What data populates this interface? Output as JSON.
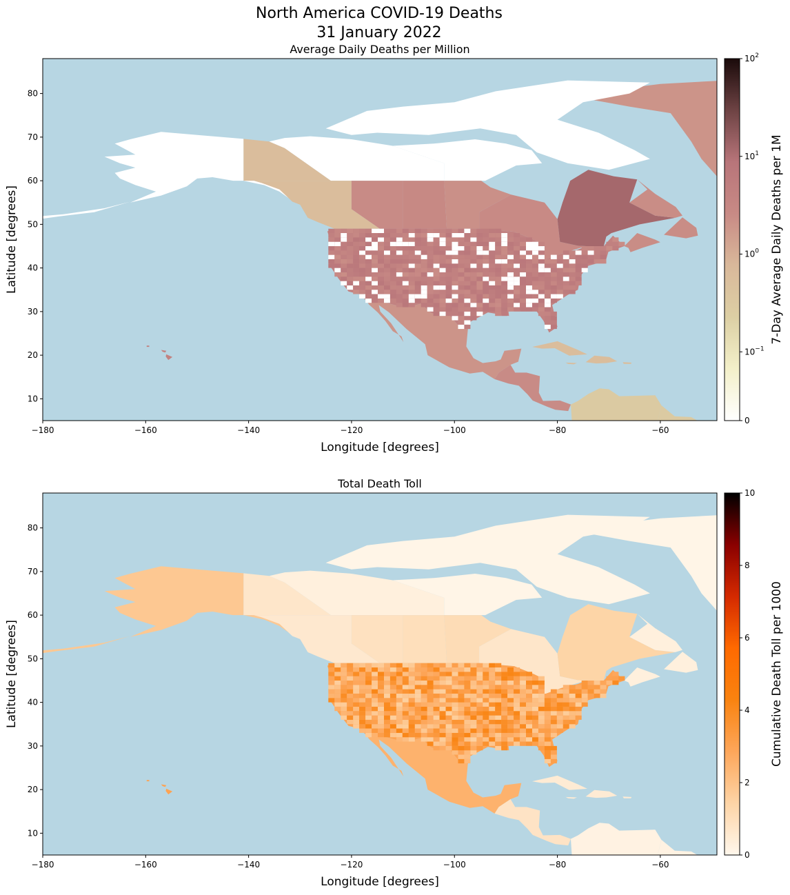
{
  "figure": {
    "title_line1": "North America COVID-19 Deaths",
    "title_line2": "31 January 2022"
  },
  "colors": {
    "ocean": "#b7d6e3",
    "land_no_data": "#ffffff",
    "daily_cmap": [
      "#ffffff",
      "#f3f0c9",
      "#dccfa4",
      "#d9b89a",
      "#c88a85",
      "#b8757a",
      "#6e4344",
      "#1a0a0a"
    ],
    "total_cmap": [
      "#fff7ec",
      "#fdd4a6",
      "#fda65a",
      "#f98310",
      "#ff6a00",
      "#d42a00",
      "#8a0000",
      "#000000"
    ]
  },
  "panels": [
    {
      "id": "daily",
      "title": "Average Daily Deaths per Million",
      "xlabel": "Longitude [degrees]",
      "ylabel": "Latitude [degrees]",
      "xlim": [
        -180,
        -49
      ],
      "ylim": [
        5,
        88
      ],
      "xticks": [
        -180,
        -160,
        -140,
        -120,
        -100,
        -80,
        -60
      ],
      "xticklabels": [
        "−180",
        "−160",
        "−140",
        "−120",
        "−100",
        "−80",
        "−60"
      ],
      "yticks": [
        10,
        20,
        30,
        40,
        50,
        60,
        70,
        80
      ],
      "yticklabels": [
        "10",
        "20",
        "30",
        "40",
        "50",
        "60",
        "70",
        "80"
      ],
      "colorbar": {
        "label": "7-Day Average Daily Deaths per 1M",
        "scale": "symlog",
        "tick_base": "10",
        "tick_exponents": [
          "2",
          "1",
          "0",
          "−1"
        ],
        "zero_label": "0"
      },
      "regions": [
        {
          "name": "Greenland",
          "value": 2.0
        },
        {
          "name": "Yukon",
          "value": 0.6
        },
        {
          "name": "Northwest Territories",
          "value": 0.0
        },
        {
          "name": "Nunavut",
          "value": 0.0
        },
        {
          "name": "British Columbia",
          "value": 0.6
        },
        {
          "name": "Alberta",
          "value": 2.5
        },
        {
          "name": "Saskatchewan",
          "value": 2.8
        },
        {
          "name": "Manitoba",
          "value": 2.2
        },
        {
          "name": "Ontario",
          "value": 2.6
        },
        {
          "name": "Quebec",
          "value": 12.0
        },
        {
          "name": "Atlantic Canada",
          "value": 2.4
        },
        {
          "name": "Alaska",
          "value": 0.0
        },
        {
          "name": "United States (counties)",
          "value": 4.0
        },
        {
          "name": "Mexico",
          "value": 2.0
        },
        {
          "name": "Central America",
          "value": 2.5
        },
        {
          "name": "Caribbean",
          "value": 0.6
        },
        {
          "name": "Venezuela",
          "value": 0.3
        }
      ]
    },
    {
      "id": "total",
      "title": "Total Death Toll",
      "xlabel": "Longitude [degrees]",
      "ylabel": "Latitude [degrees]",
      "xlim": [
        -180,
        -49
      ],
      "ylim": [
        5,
        88
      ],
      "xticks": [
        -180,
        -160,
        -140,
        -120,
        -100,
        -80,
        -60
      ],
      "xticklabels": [
        "−180",
        "−160",
        "−140",
        "−120",
        "−100",
        "−80",
        "−60"
      ],
      "yticks": [
        10,
        20,
        30,
        40,
        50,
        60,
        70,
        80
      ],
      "yticklabels": [
        "10",
        "20",
        "30",
        "40",
        "50",
        "60",
        "70",
        "80"
      ],
      "colorbar": {
        "label": "Cumulative Death Toll per 1000",
        "scale": "linear",
        "range": [
          0,
          10
        ],
        "ticks": [
          0,
          2,
          4,
          6,
          8,
          10
        ],
        "ticklabels": [
          "0",
          "2",
          "4",
          "6",
          "8",
          "10"
        ]
      },
      "regions": [
        {
          "name": "Greenland",
          "value": 0.1
        },
        {
          "name": "Yukon",
          "value": 0.7
        },
        {
          "name": "Northwest Territories",
          "value": 0.3
        },
        {
          "name": "Nunavut",
          "value": 0.1
        },
        {
          "name": "British Columbia",
          "value": 0.6
        },
        {
          "name": "Alberta",
          "value": 0.9
        },
        {
          "name": "Saskatchewan",
          "value": 1.0
        },
        {
          "name": "Manitoba",
          "value": 1.1
        },
        {
          "name": "Ontario",
          "value": 0.7
        },
        {
          "name": "Quebec",
          "value": 1.4
        },
        {
          "name": "Atlantic Canada",
          "value": 0.3
        },
        {
          "name": "Alaska",
          "value": 1.8
        },
        {
          "name": "United States (counties)",
          "value": 3.0
        },
        {
          "name": "Mexico",
          "value": 2.5
        },
        {
          "name": "Central America",
          "value": 0.8
        },
        {
          "name": "Caribbean",
          "value": 0.5
        },
        {
          "name": "Venezuela",
          "value": 0.2
        }
      ]
    }
  ]
}
